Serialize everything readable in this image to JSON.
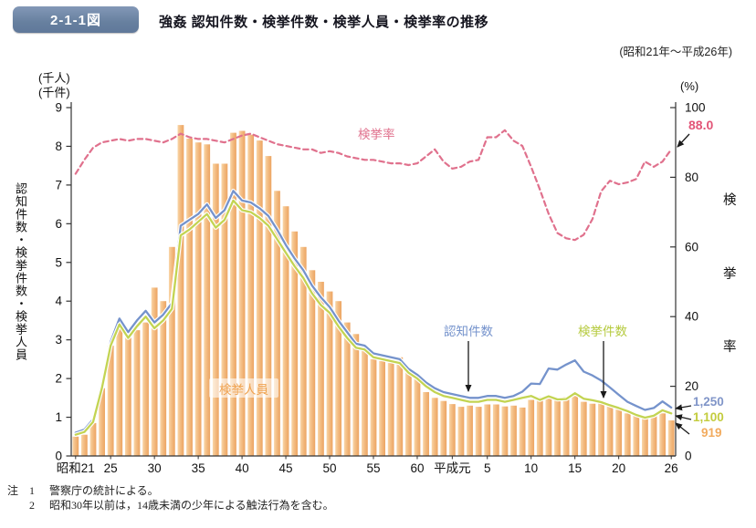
{
  "header": {
    "figure_label": "2-1-1図",
    "title": "強姦 認知件数・検挙件数・検挙人員・検挙率の推移",
    "period": "(昭和21年～平成26年)"
  },
  "axes": {
    "left_unit_line1": "(千人)",
    "left_unit_line2": "(千件)",
    "left_axis_label": "認知件数・検挙件数・検挙人員",
    "right_unit": "(%)",
    "right_axis_label_chars": [
      "検",
      "挙",
      "率"
    ],
    "left_ticks": [
      0,
      1,
      2,
      3,
      4,
      5,
      6,
      7,
      8,
      9
    ],
    "right_ticks": [
      0,
      20,
      40,
      60,
      80,
      100
    ]
  },
  "series_labels": {
    "rate": "検挙率",
    "reported": "認知件数",
    "cleared": "検挙件数",
    "persons": "検挙人員"
  },
  "end_labels": {
    "rate": "88.0",
    "reported": "1,250",
    "cleared": "1,100",
    "persons": "919"
  },
  "notes": {
    "prefix": "注",
    "items": [
      {
        "no": "1",
        "text": "警察庁の統計による。"
      },
      {
        "no": "2",
        "text": "昭和30年以前は，14歳未満の少年による触法行為を含む。"
      }
    ]
  },
  "colors": {
    "badge": "#67809f",
    "bar_light": "#f9d6a8",
    "bar_mid": "#f3bc82",
    "bar_dark": "#eca462",
    "reported_line": "#7593cc",
    "cleared_line": "#c3d452",
    "rate_line": "#e0718d",
    "axis": "#333333",
    "end_rate": "#e25577",
    "end_reported": "#8095c8",
    "end_cleared": "#c3cc3e",
    "end_persons": "#f2ab5e"
  },
  "chart_data": {
    "type": "bar",
    "title": "強姦 認知件数・検挙件数・検挙人員・検挙率の推移",
    "subtitle": "(昭和21年～平成26年)",
    "left_axis": {
      "label": "認知件数・検挙件数・検挙人員",
      "units": [
        "千人",
        "千件"
      ],
      "min": 0,
      "max": 9,
      "ticks": [
        0,
        1,
        2,
        3,
        4,
        5,
        6,
        7,
        8,
        9
      ]
    },
    "right_axis": {
      "label": "検挙率",
      "unit": "%",
      "min": 0,
      "max": 100,
      "ticks": [
        0,
        20,
        40,
        60,
        80,
        100
      ]
    },
    "grid": false,
    "legend_position": "in-plot-annotations",
    "years": [
      1946,
      1947,
      1948,
      1949,
      1950,
      1951,
      1952,
      1953,
      1954,
      1955,
      1956,
      1957,
      1958,
      1959,
      1960,
      1961,
      1962,
      1963,
      1964,
      1965,
      1966,
      1967,
      1968,
      1969,
      1970,
      1971,
      1972,
      1973,
      1974,
      1975,
      1976,
      1977,
      1978,
      1979,
      1980,
      1981,
      1982,
      1983,
      1984,
      1985,
      1986,
      1987,
      1988,
      1989,
      1990,
      1991,
      1992,
      1993,
      1994,
      1995,
      1996,
      1997,
      1998,
      1999,
      2000,
      2001,
      2002,
      2003,
      2004,
      2005,
      2006,
      2007,
      2008,
      2009,
      2010,
      2011,
      2012,
      2013,
      2014
    ],
    "x_ticks": [
      {
        "label": "昭和21",
        "year": 1946
      },
      {
        "label": "25",
        "year": 1950
      },
      {
        "label": "30",
        "year": 1955
      },
      {
        "label": "35",
        "year": 1960
      },
      {
        "label": "40",
        "year": 1965
      },
      {
        "label": "45",
        "year": 1970
      },
      {
        "label": "50",
        "year": 1975
      },
      {
        "label": "55",
        "year": 1980
      },
      {
        "label": "60",
        "year": 1985
      },
      {
        "label": "平成元",
        "year": 1989
      },
      {
        "label": "5",
        "year": 1993
      },
      {
        "label": "10",
        "year": 1998
      },
      {
        "label": "15",
        "year": 2003
      },
      {
        "label": "20",
        "year": 2008
      },
      {
        "label": "26",
        "year": 2014
      }
    ],
    "series": [
      {
        "name": "検挙人員",
        "type": "bar",
        "axis": "left",
        "unit": "千人",
        "values": [
          0.5,
          0.55,
          0.85,
          1.75,
          2.85,
          3.35,
          3.05,
          3.25,
          3.45,
          4.35,
          4.0,
          5.4,
          8.55,
          8.2,
          8.1,
          8.05,
          7.55,
          7.55,
          8.35,
          8.4,
          8.3,
          8.15,
          7.75,
          6.85,
          6.45,
          5.8,
          5.4,
          4.8,
          4.5,
          4.25,
          4.0,
          3.45,
          3.15,
          2.85,
          2.5,
          2.45,
          2.4,
          2.55,
          2.25,
          2.0,
          1.65,
          1.5,
          1.42,
          1.34,
          1.27,
          1.3,
          1.27,
          1.33,
          1.33,
          1.28,
          1.3,
          1.25,
          1.45,
          1.52,
          1.54,
          1.48,
          1.53,
          1.55,
          1.4,
          1.35,
          1.4,
          1.32,
          1.2,
          1.1,
          1.05,
          1.02,
          1.08,
          1.1,
          0.92
        ]
      },
      {
        "name": "認知件数",
        "type": "line",
        "axis": "left",
        "unit": "千件",
        "values": [
          0.6,
          0.68,
          0.95,
          1.85,
          2.95,
          3.55,
          3.2,
          3.5,
          3.75,
          3.45,
          3.65,
          3.95,
          5.95,
          6.1,
          6.25,
          6.5,
          6.15,
          6.35,
          6.85,
          6.6,
          6.55,
          6.4,
          6.2,
          5.85,
          5.45,
          5.1,
          4.8,
          4.4,
          4.1,
          3.85,
          3.5,
          3.2,
          2.9,
          2.85,
          2.65,
          2.6,
          2.55,
          2.5,
          2.25,
          2.1,
          1.9,
          1.75,
          1.65,
          1.6,
          1.55,
          1.5,
          1.5,
          1.55,
          1.55,
          1.5,
          1.55,
          1.66,
          1.87,
          1.86,
          2.26,
          2.23,
          2.36,
          2.47,
          2.18,
          2.08,
          1.95,
          1.77,
          1.58,
          1.4,
          1.29,
          1.19,
          1.24,
          1.41,
          1.25
        ]
      },
      {
        "name": "検挙件数",
        "type": "line",
        "axis": "left",
        "unit": "千件",
        "values": [
          0.55,
          0.62,
          0.88,
          1.75,
          2.85,
          3.4,
          3.05,
          3.35,
          3.6,
          3.3,
          3.5,
          3.8,
          5.7,
          5.85,
          6.05,
          6.25,
          5.9,
          6.1,
          6.6,
          6.35,
          6.3,
          6.15,
          5.95,
          5.6,
          5.25,
          4.9,
          4.6,
          4.2,
          3.9,
          3.7,
          3.35,
          3.05,
          2.8,
          2.75,
          2.55,
          2.5,
          2.45,
          2.4,
          2.15,
          2.0,
          1.8,
          1.65,
          1.55,
          1.5,
          1.45,
          1.4,
          1.4,
          1.45,
          1.45,
          1.4,
          1.45,
          1.5,
          1.55,
          1.45,
          1.54,
          1.46,
          1.47,
          1.62,
          1.48,
          1.44,
          1.39,
          1.31,
          1.24,
          1.16,
          1.06,
          0.99,
          1.04,
          1.18,
          1.1
        ]
      },
      {
        "name": "検挙率",
        "type": "line-dashed",
        "axis": "right",
        "unit": "%",
        "values": [
          81,
          85,
          88.5,
          90,
          90.5,
          91,
          90.5,
          91,
          91,
          90.5,
          90,
          91,
          92.5,
          91.5,
          91,
          91,
          90.5,
          90,
          91,
          92,
          92.5,
          91.5,
          90.5,
          89.5,
          89,
          88.5,
          88,
          88,
          87,
          87.5,
          87,
          86,
          85.5,
          85,
          85,
          84.5,
          84,
          84,
          83.5,
          84,
          86,
          88,
          84.5,
          82.5,
          83,
          84.5,
          85,
          91.5,
          91.5,
          93.5,
          90.5,
          89,
          83,
          76.5,
          69.5,
          64,
          62.5,
          62,
          63.5,
          68,
          76,
          79,
          78,
          78.5,
          79.5,
          84.5,
          83,
          84.5,
          88.0
        ]
      }
    ],
    "end_values": {
      "認知件数": "1,250",
      "検挙件数": "1,100",
      "検挙人員": "919",
      "検挙率": "88.0"
    }
  }
}
